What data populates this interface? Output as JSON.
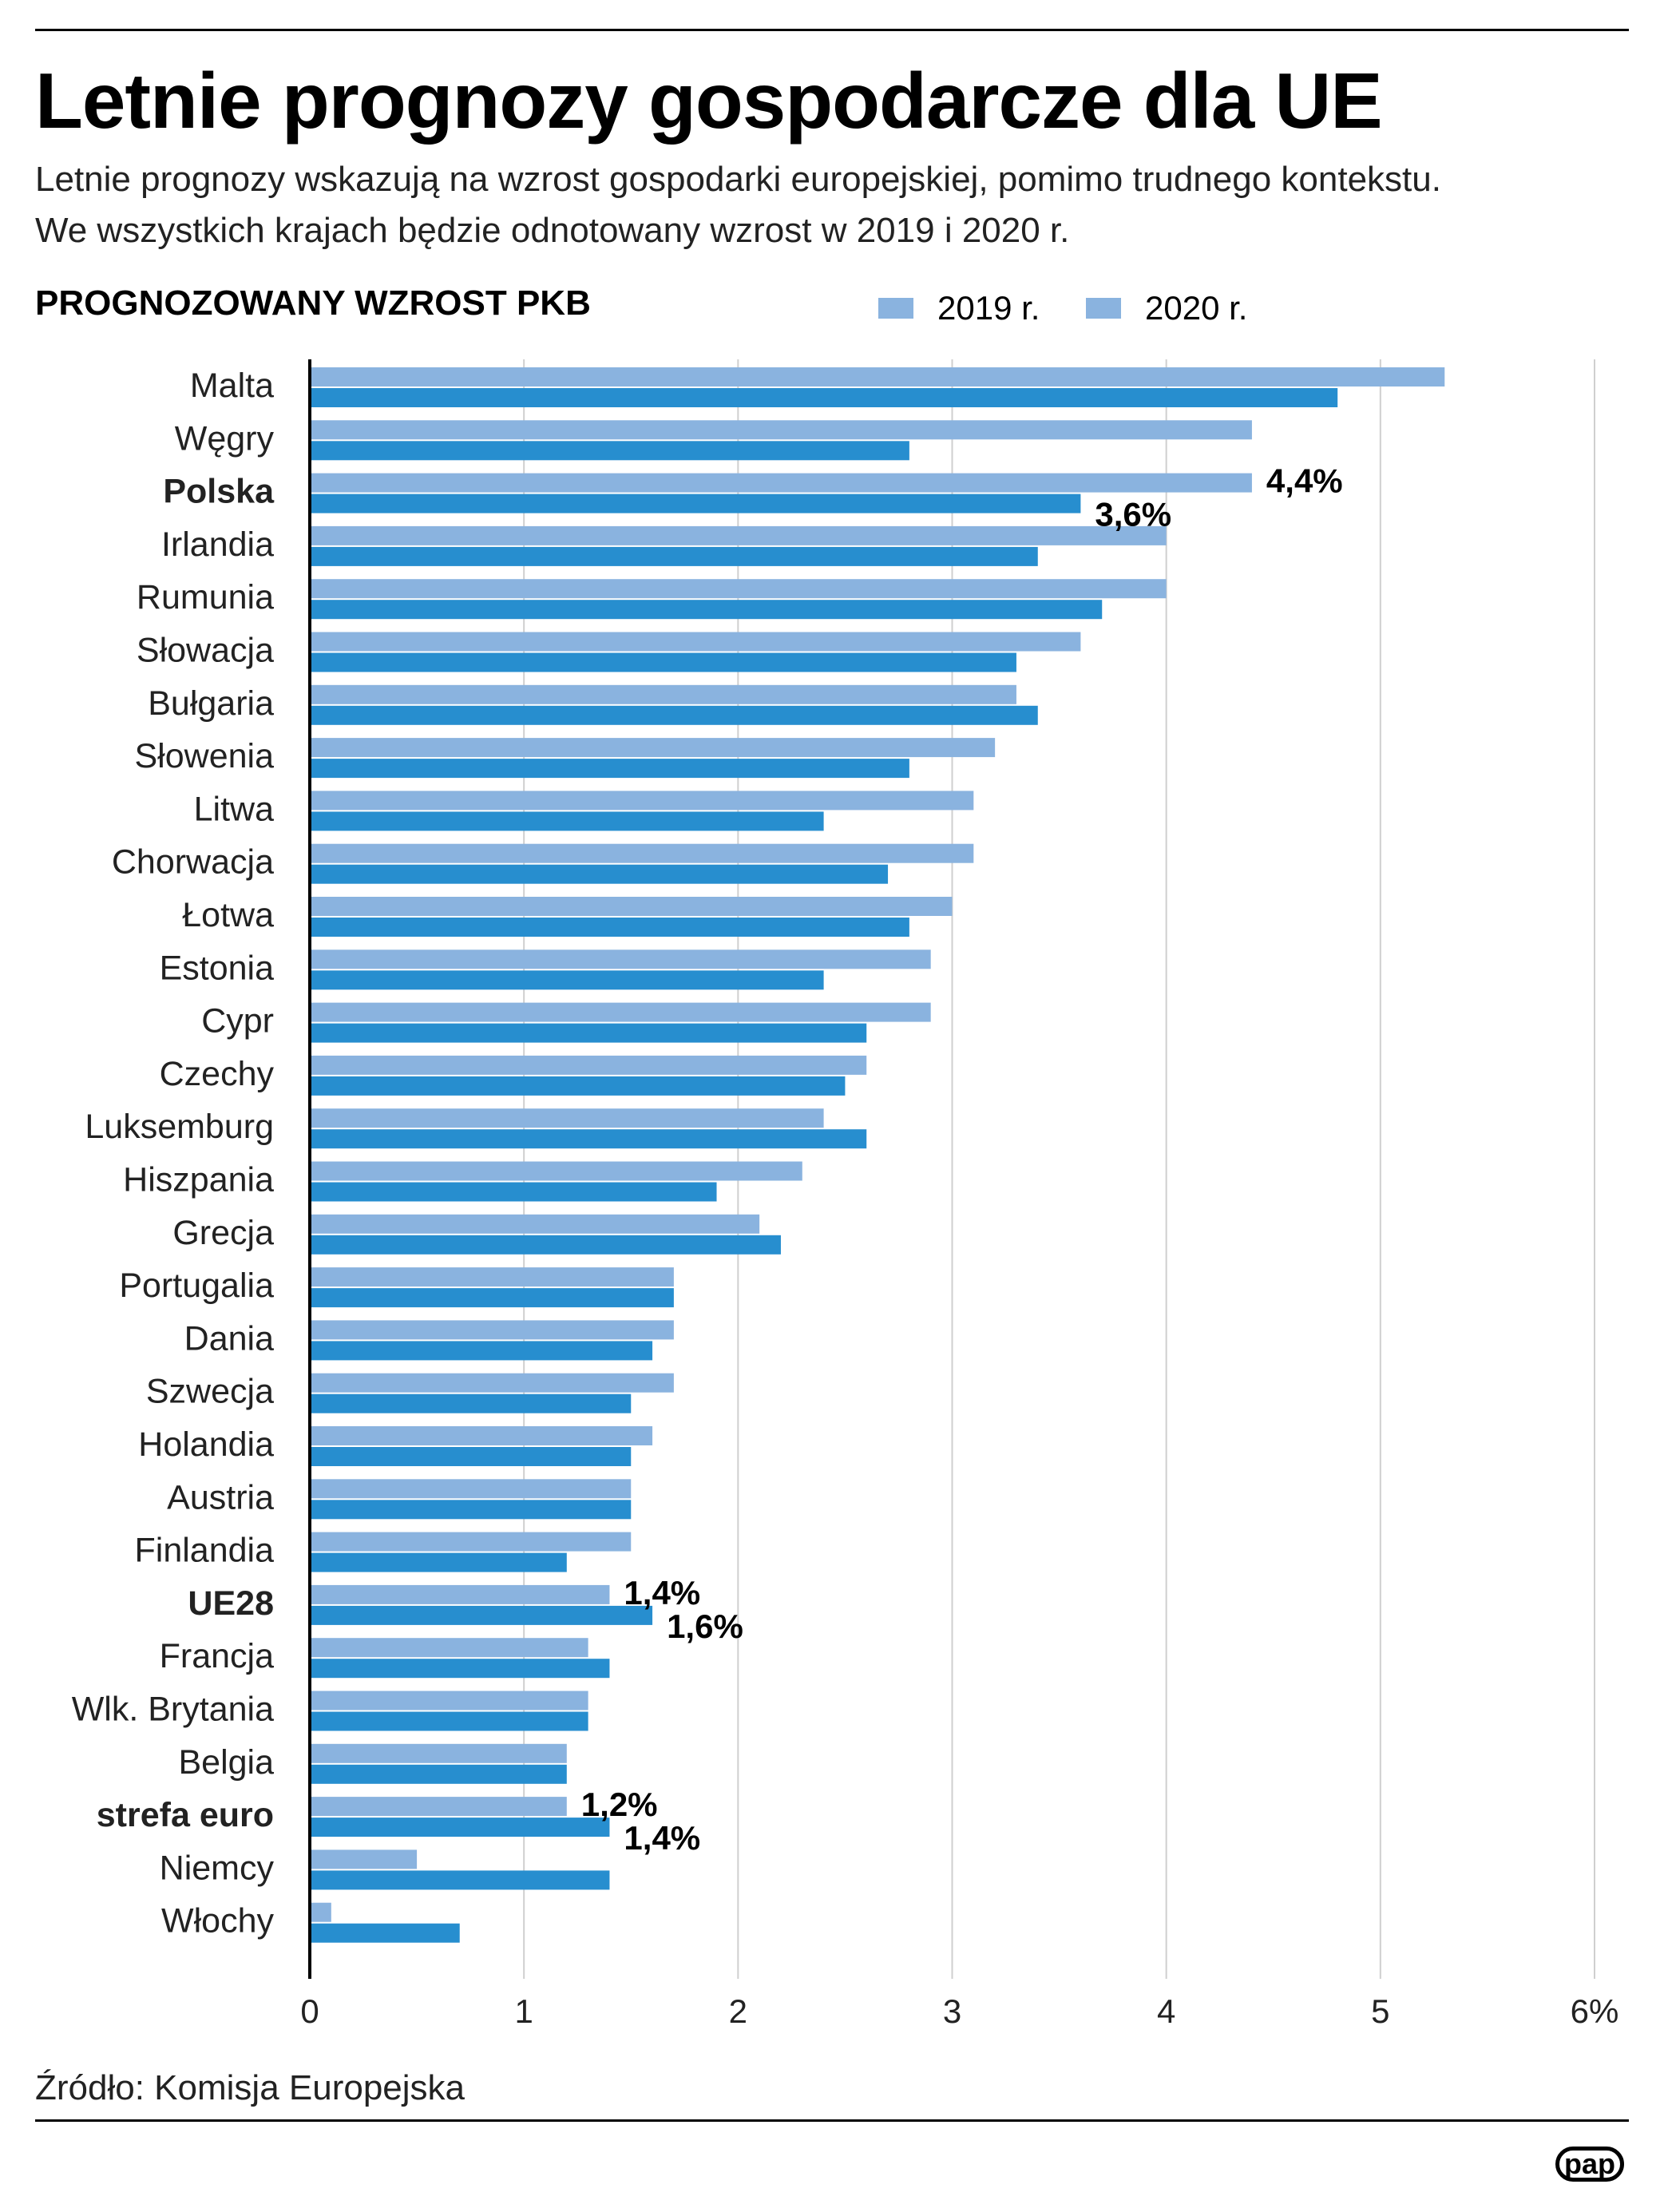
{
  "title": "Letnie prognozy gospodarcze dla UE",
  "subtitle_lines": [
    "Letnie prognozy wskazują na wzrost gospodarki europejskiej, pomimo trudnego kontekstu.",
    "We wszystkich krajach będzie odnotowany wzrost w 2019 i 2020 r."
  ],
  "source": "Źródło: Komisja Europejska",
  "logo": "pap",
  "chart_data": {
    "type": "bar",
    "orientation": "horizontal",
    "title": "PROGNOZOWANY WZROST PKB",
    "xlim": [
      0,
      6
    ],
    "x_ticks": [
      "0",
      "1",
      "2",
      "3",
      "4",
      "5",
      "6%"
    ],
    "grid": true,
    "legend_position": "top-right",
    "categories": [
      "Malta",
      "Węgry",
      "Polska",
      "Irlandia",
      "Rumunia",
      "Słowacja",
      "Bułgaria",
      "Słowenia",
      "Litwa",
      "Chorwacja",
      "Łotwa",
      "Estonia",
      "Cypr",
      "Czechy",
      "Luksemburg",
      "Hiszpania",
      "Grecja",
      "Portugalia",
      "Dania",
      "Szwecja",
      "Holandia",
      "Austria",
      "Finlandia",
      "UE28",
      "Francja",
      "Wlk. Brytania",
      "Belgia",
      "strefa euro",
      "Niemcy",
      "Włochy"
    ],
    "highlighted": [
      "Polska",
      "UE28",
      "strefa euro"
    ],
    "series": [
      {
        "name": "2019 r.",
        "color": "#8ab3df",
        "values": [
          5.3,
          4.4,
          4.4,
          4.0,
          4.0,
          3.6,
          3.3,
          3.2,
          3.1,
          3.1,
          3.0,
          2.9,
          2.9,
          2.6,
          2.4,
          2.3,
          2.1,
          1.7,
          1.7,
          1.7,
          1.6,
          1.5,
          1.5,
          1.4,
          1.3,
          1.3,
          1.2,
          1.2,
          0.5,
          0.1
        ]
      },
      {
        "name": "2020 r.",
        "color": "#278ecf",
        "values": [
          4.8,
          2.8,
          3.6,
          3.4,
          3.7,
          3.3,
          3.4,
          2.8,
          2.4,
          2.7,
          2.8,
          2.4,
          2.6,
          2.5,
          2.6,
          1.9,
          2.2,
          1.7,
          1.6,
          1.5,
          1.5,
          1.5,
          1.2,
          1.6,
          1.4,
          1.3,
          1.2,
          1.4,
          1.4,
          0.7
        ]
      }
    ],
    "legend_swatch_color": "#8ab3df",
    "data_labels": [
      {
        "category": "Polska",
        "series": 0,
        "text": "4,4%"
      },
      {
        "category": "Polska",
        "series": 1,
        "text": "3,6%"
      },
      {
        "category": "UE28",
        "series": 0,
        "text": "1,4%"
      },
      {
        "category": "UE28",
        "series": 1,
        "text": "1,6%"
      },
      {
        "category": "strefa euro",
        "series": 0,
        "text": "1,2%"
      },
      {
        "category": "strefa euro",
        "series": 1,
        "text": "1,4%"
      }
    ]
  }
}
